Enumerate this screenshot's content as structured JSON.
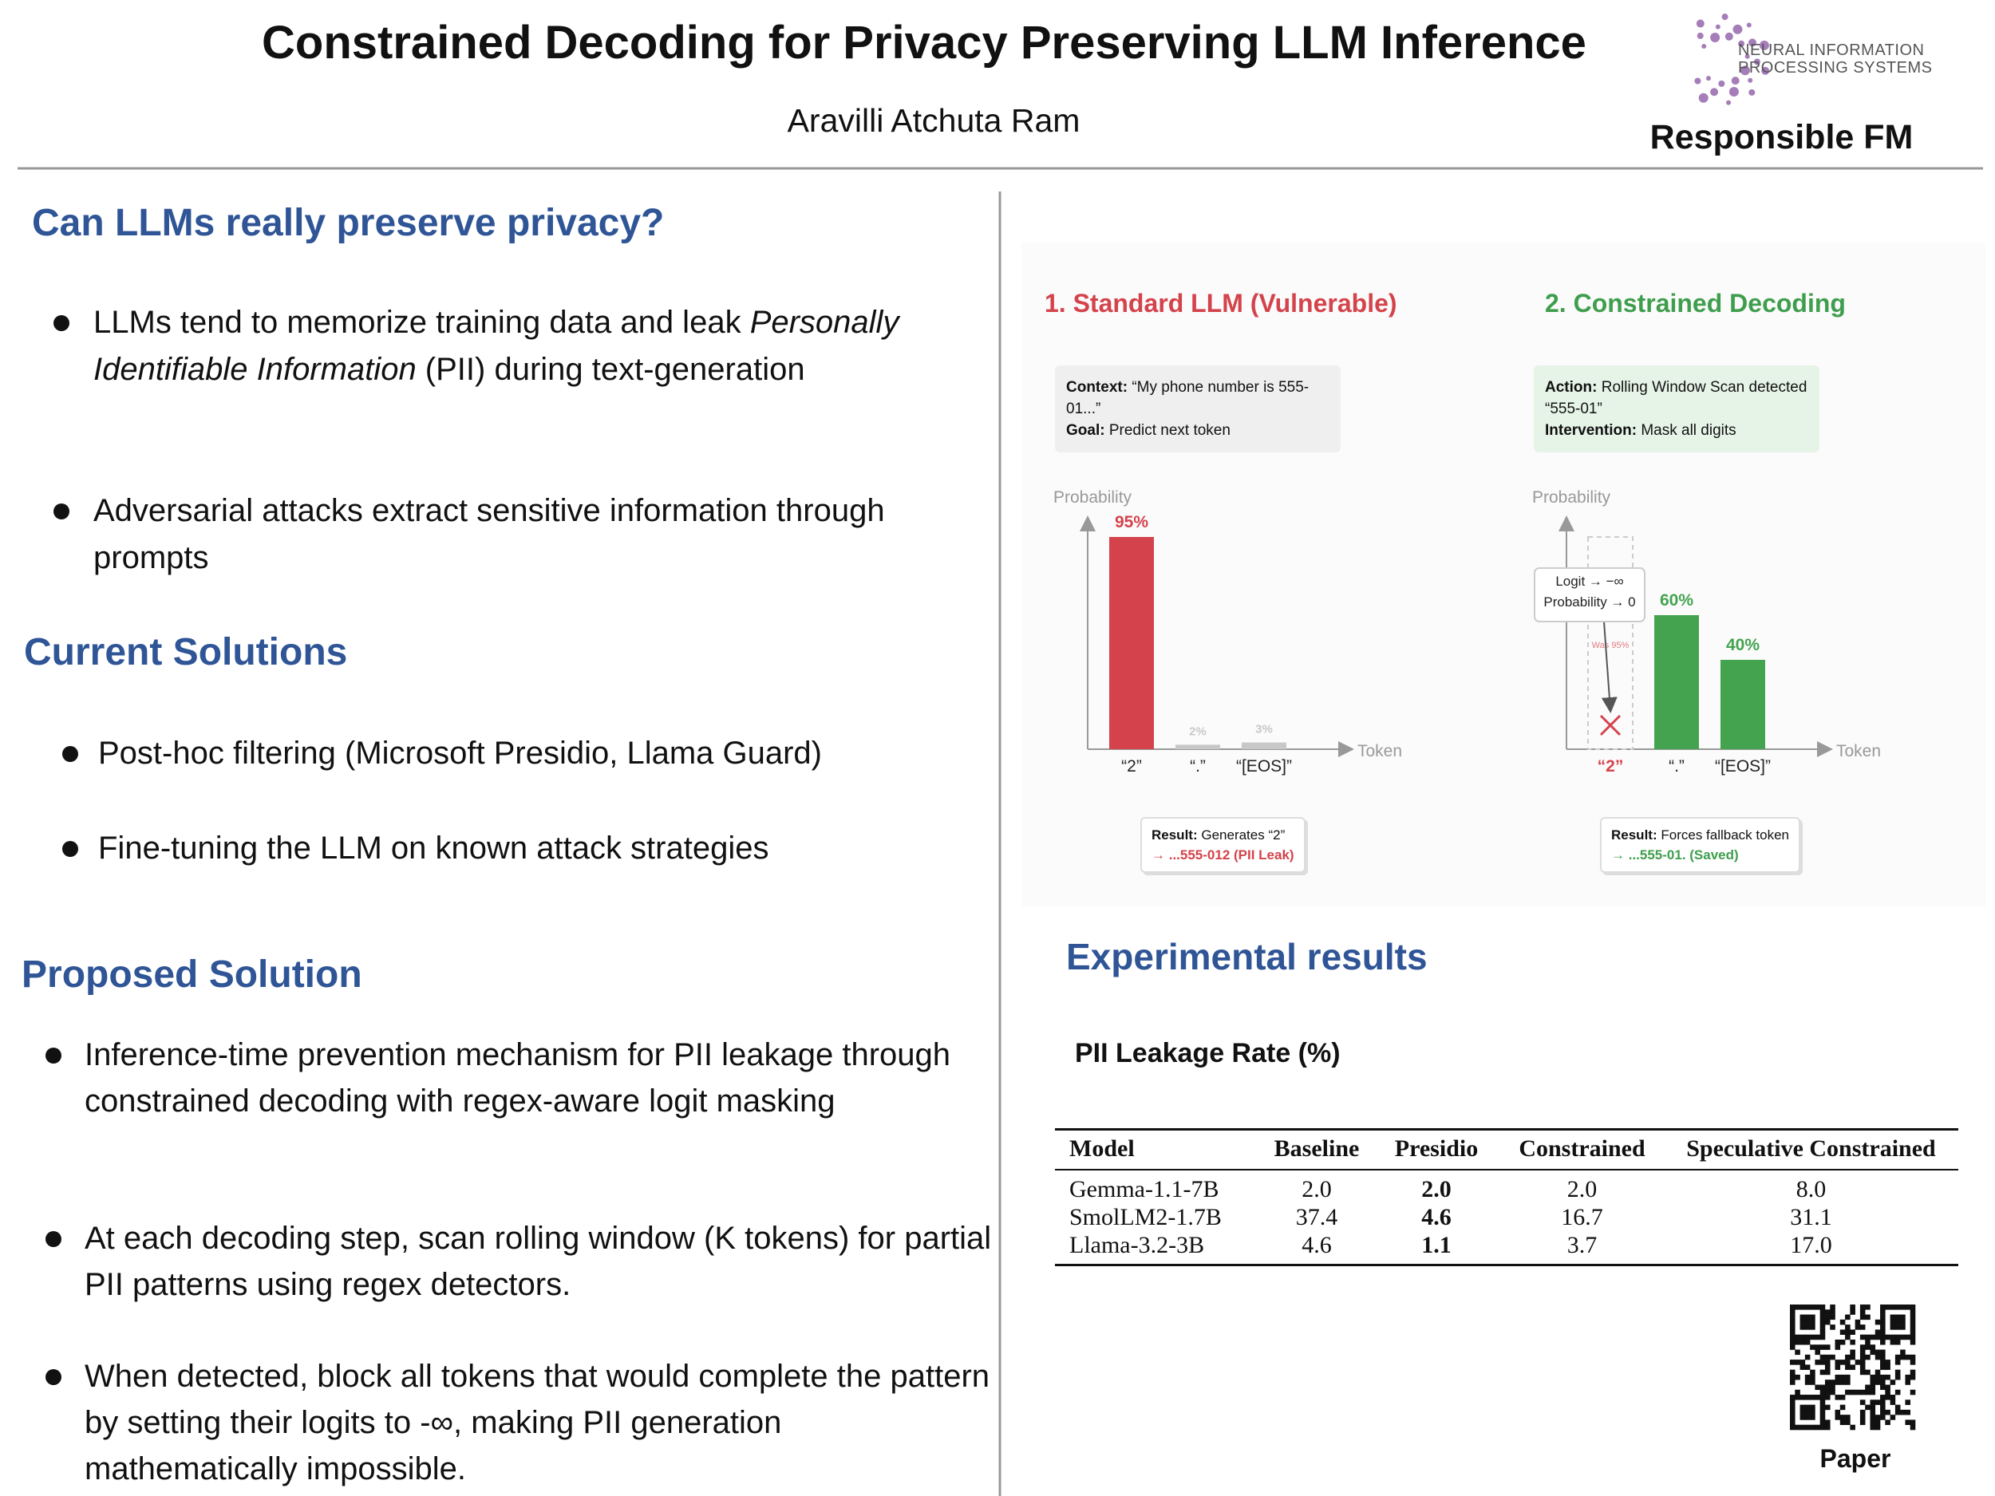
{
  "header": {
    "title": "Constrained Decoding for Privacy Preserving LLM Inference",
    "author": "Aravilli Atchuta Ram",
    "logo_lines": [
      "NEURAL INFORMATION",
      "PROCESSING SYSTEMS"
    ],
    "track": "Responsible FM"
  },
  "sections": [
    {
      "heading": "Can LLMs really preserve privacy?",
      "bullets": [
        [
          {
            "text": "LLMs tend to memorize training data and leak "
          },
          {
            "text": "Personally Identifiable Information",
            "italic": true
          },
          {
            "text": " (PII) during text-generation"
          }
        ],
        "Adversarial attacks extract sensitive information through prompts"
      ]
    },
    {
      "heading": "Current Solutions",
      "bullets": [
        "Post-hoc filtering (Microsoft Presidio, Llama Guard)",
        "Fine-tuning the LLM on known attack strategies"
      ]
    },
    {
      "heading": "Proposed Solution",
      "bullets": [
        "Inference-time prevention mechanism for PII leakage through constrained decoding with regex-aware logit masking",
        "At each decoding step, scan rolling window (K tokens) for partial PII patterns using regex detectors.",
        "When detected, block all tokens that would complete the pattern by setting their logits to -∞, making PII generation mathematically impossible."
      ]
    }
  ],
  "figure": {
    "panels": [
      {
        "title": "1. Standard LLM (Vulnerable)",
        "color": "#d4434b",
        "box_color": "#efefef",
        "box": [
          {
            "label": "Context:",
            "text": "“My phone number is 555-01...”"
          },
          {
            "label": "Goal:",
            "text": "Predict next token"
          }
        ],
        "y_label": "Probability",
        "x_label": "Token",
        "categories": [
          "“2”",
          "“.”",
          "“[EOS]”"
        ],
        "values": [
          95,
          2,
          3
        ],
        "value_labels": [
          "95%",
          "2%",
          "3%"
        ],
        "colors": [
          "#d4434b",
          "#c8c8c8",
          "#c8c8c8"
        ],
        "ylim": [
          0,
          100
        ],
        "result": {
          "label": "Result:",
          "text": "Generates “2”",
          "detail": "→ ...555-012 (PII Leak)"
        }
      },
      {
        "title": "2. Constrained Decoding",
        "color": "#3f9e4d",
        "box_color": "#e6f4e8",
        "box": [
          {
            "label": "Action:",
            "text": "Rolling Window Scan detected “555-01”"
          },
          {
            "label": "Intervention:",
            "text": "Mask all digits"
          }
        ],
        "y_label": "Probability",
        "x_label": "Token",
        "categories": [
          "“2”",
          "“.”",
          "“[EOS]”"
        ],
        "values": [
          0,
          60,
          40
        ],
        "value_labels": [
          null,
          "60%",
          "40%"
        ],
        "colors": [
          "#d4434b",
          "#43a34f",
          "#43a34f"
        ],
        "ylim": [
          0,
          100
        ],
        "blocked_index": 0,
        "blocked_value": 95,
        "blocked_label": "Was 95%",
        "annotation": [
          "Logit → −∞",
          "Probability → 0"
        ],
        "result": {
          "label": "Result:",
          "text": "Forces fallback token",
          "detail": "→ ...555-01. (Saved)"
        }
      }
    ]
  },
  "results": {
    "heading": "Experimental results",
    "caption": "PII Leakage Rate (%)",
    "table": {
      "columns": [
        "Model",
        "Baseline",
        "Presidio",
        "Constrained",
        "Speculative Constrained"
      ],
      "rows": [
        [
          "Gemma-1.1-7B",
          "2.0",
          "2.0",
          "2.0",
          "8.0"
        ],
        [
          "SmolLM2-1.7B",
          "37.4",
          "4.6",
          "16.7",
          "31.1"
        ],
        [
          "Llama-3.2-3B",
          "4.6",
          "1.1",
          "3.7",
          "17.0"
        ]
      ],
      "bold_column": 2
    }
  },
  "qr": {
    "label": "Paper"
  }
}
